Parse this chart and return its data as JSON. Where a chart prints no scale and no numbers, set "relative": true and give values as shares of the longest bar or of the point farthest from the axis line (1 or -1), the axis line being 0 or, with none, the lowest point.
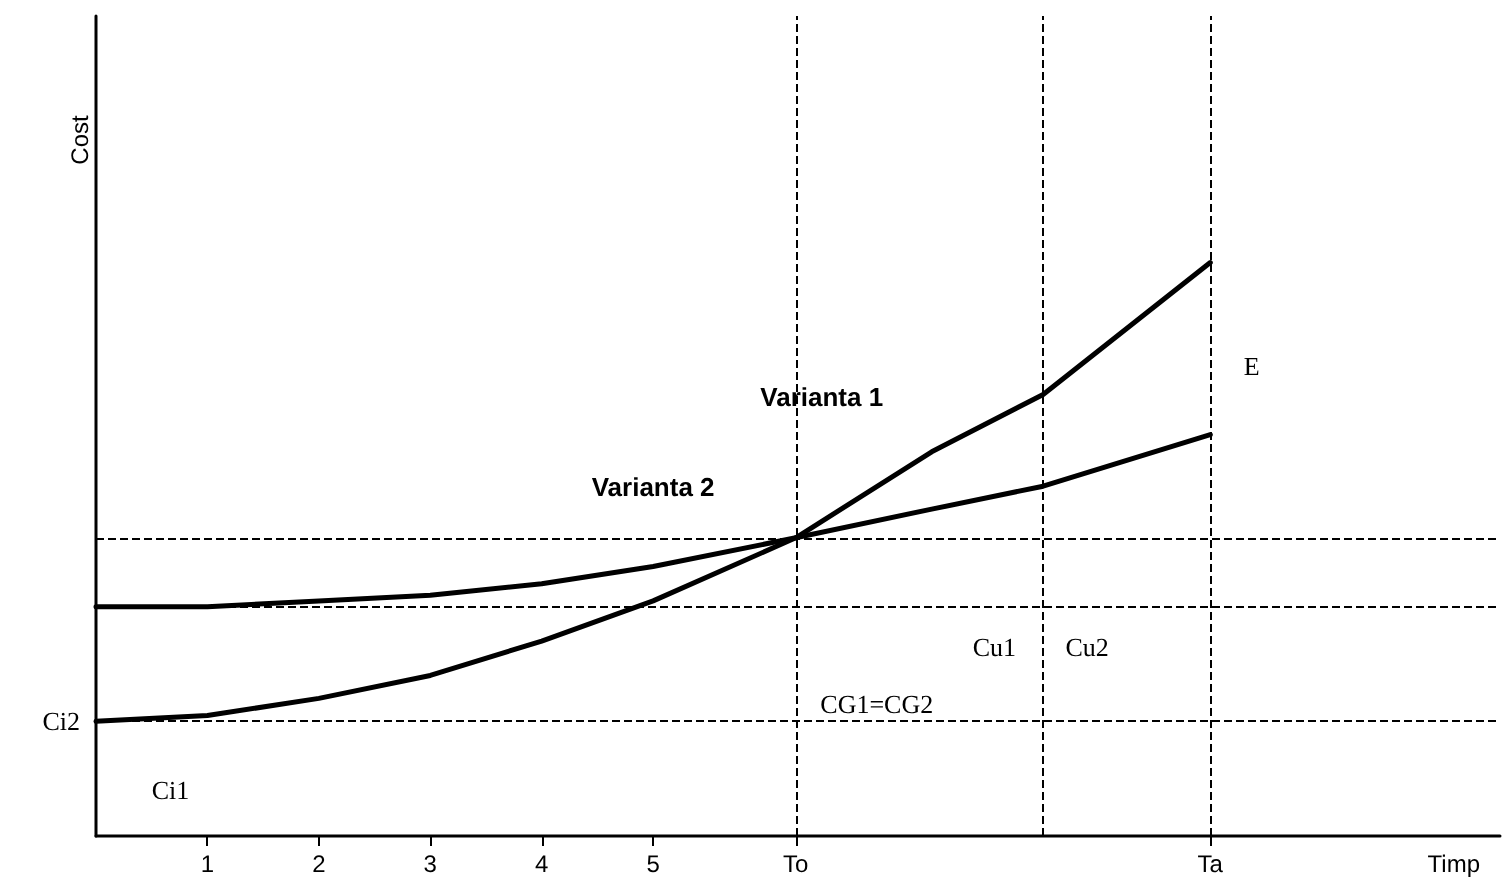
{
  "chart_data": {
    "type": "line",
    "relative": true,
    "xlabel": "Timp",
    "ylabel": "Cost",
    "xlim": [
      0,
      12.6
    ],
    "xticks": [
      1,
      2,
      3,
      4,
      5,
      {
        "value": 6.28,
        "label": "To"
      },
      {
        "value": 10,
        "label": "Ta"
      }
    ],
    "x": [
      0,
      1,
      2,
      3,
      4,
      5,
      6.28,
      7.5,
      8.5,
      10
    ],
    "series": [
      {
        "name": "Varianta 1",
        "color": "#000000",
        "values": [
          0.2,
          0.21,
          0.24,
          0.28,
          0.34,
          0.41,
          0.52,
          0.67,
          0.77,
          1.0
        ]
      },
      {
        "name": "Varianta 2",
        "color": "#000000",
        "values": [
          0.4,
          0.4,
          0.41,
          0.42,
          0.44,
          0.47,
          0.52,
          0.57,
          0.61,
          0.7
        ]
      }
    ],
    "ref_lines": [
      {
        "axis": "y",
        "value": 0.2,
        "line_style": "dashed"
      },
      {
        "axis": "y",
        "value": 0.4,
        "line_style": "dashed"
      },
      {
        "axis": "y",
        "value": 0.52,
        "line_style": "dashed"
      },
      {
        "axis": "x",
        "value": 6.28,
        "line_style": "dashed"
      },
      {
        "axis": "x",
        "value": 8.5,
        "line_style": "dashed"
      },
      {
        "axis": "x",
        "value": 10,
        "line_style": "dashed"
      }
    ],
    "annotations": [
      "Ci1",
      "Ci2",
      "CG1=CG2",
      "Cu1",
      "Cu2",
      "E"
    ],
    "grid": false,
    "legend": false,
    "marker": "none",
    "line_style": "solid"
  }
}
